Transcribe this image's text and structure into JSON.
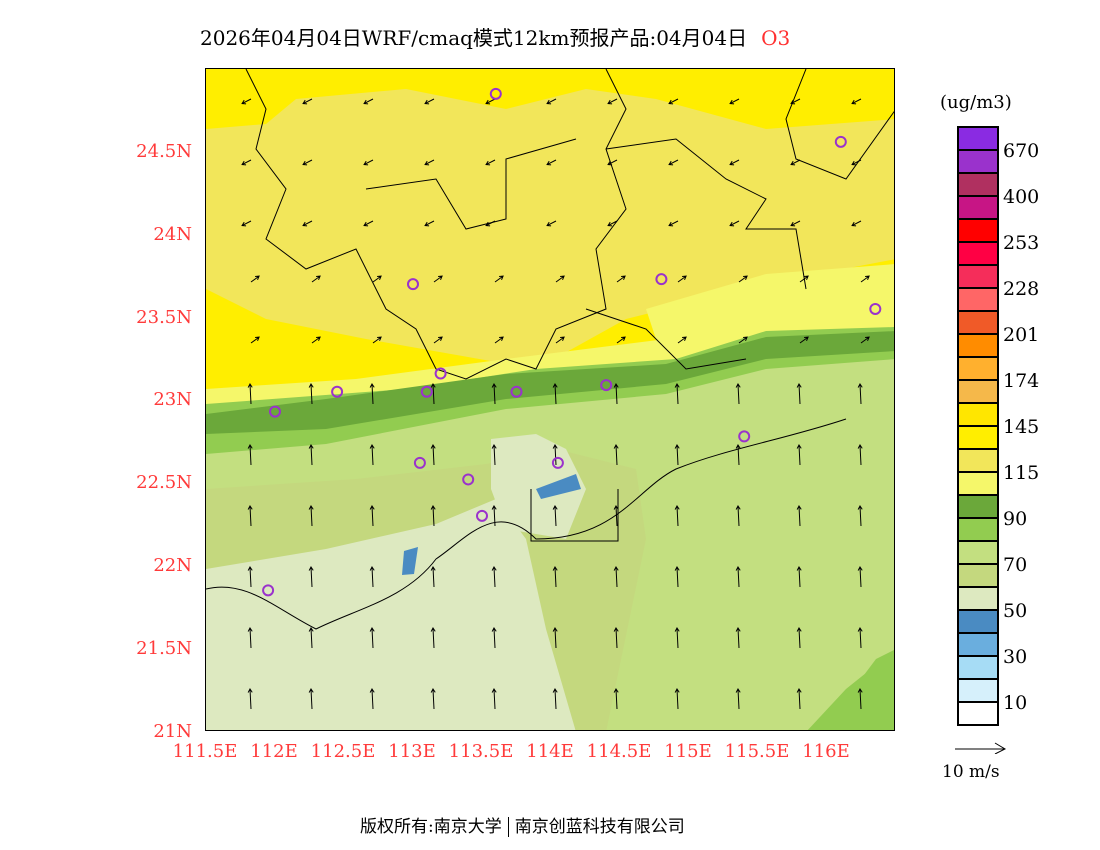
{
  "title": {
    "main": "2026年04月04日WRF/cmaq模式12km预报产品:04月04日",
    "species": "O3"
  },
  "lat_ticks": [
    "24.5N",
    "24N",
    "23.5N",
    "23N",
    "22.5N",
    "22N",
    "21.5N",
    "21N"
  ],
  "lon_ticks": [
    "111.5E",
    "112E",
    "112.5E",
    "113E",
    "113.5E",
    "114E",
    "114.5E",
    "115E",
    "115.5E",
    "116E"
  ],
  "legend": {
    "unit": "(ug/m3)",
    "colors": [
      "#8a2be2",
      "#9a32cc",
      "#b03060",
      "#c71585",
      "#ff0000",
      "#ff0044",
      "#f52d5a",
      "#ff6666",
      "#f05a28",
      "#ff8c00",
      "#ffb02e",
      "#f5b84a",
      "#ffe600",
      "#ffee00",
      "#f2e65a",
      "#f5f76a",
      "#6ba83a",
      "#92cc50",
      "#c3df80",
      "#c4d87e",
      "#dde9c0",
      "#4a8bc2",
      "#6aaede",
      "#a6dcf5",
      "#d6f0fb",
      "#ffffff"
    ],
    "labels": [
      "670",
      "400",
      "253",
      "228",
      "201",
      "174",
      "145",
      "115",
      "90",
      "70",
      "50",
      "30",
      "10"
    ]
  },
  "wind_scale": "10 m/s",
  "stations": [
    [
      113.6,
      24.85
    ],
    [
      116.1,
      24.56
    ],
    [
      113.0,
      23.7
    ],
    [
      114.8,
      23.73
    ],
    [
      116.35,
      23.55
    ],
    [
      112.45,
      23.05
    ],
    [
      112.0,
      22.93
    ],
    [
      113.1,
      23.05
    ],
    [
      113.2,
      23.16
    ],
    [
      113.75,
      23.05
    ],
    [
      114.4,
      23.09
    ],
    [
      115.4,
      22.78
    ],
    [
      113.05,
      22.62
    ],
    [
      113.4,
      22.52
    ],
    [
      114.05,
      22.62
    ],
    [
      113.5,
      22.3
    ],
    [
      111.95,
      21.85
    ]
  ],
  "footer": {
    "left": "版权所有:南京大学",
    "right": "南京创蓝科技有限公司"
  }
}
